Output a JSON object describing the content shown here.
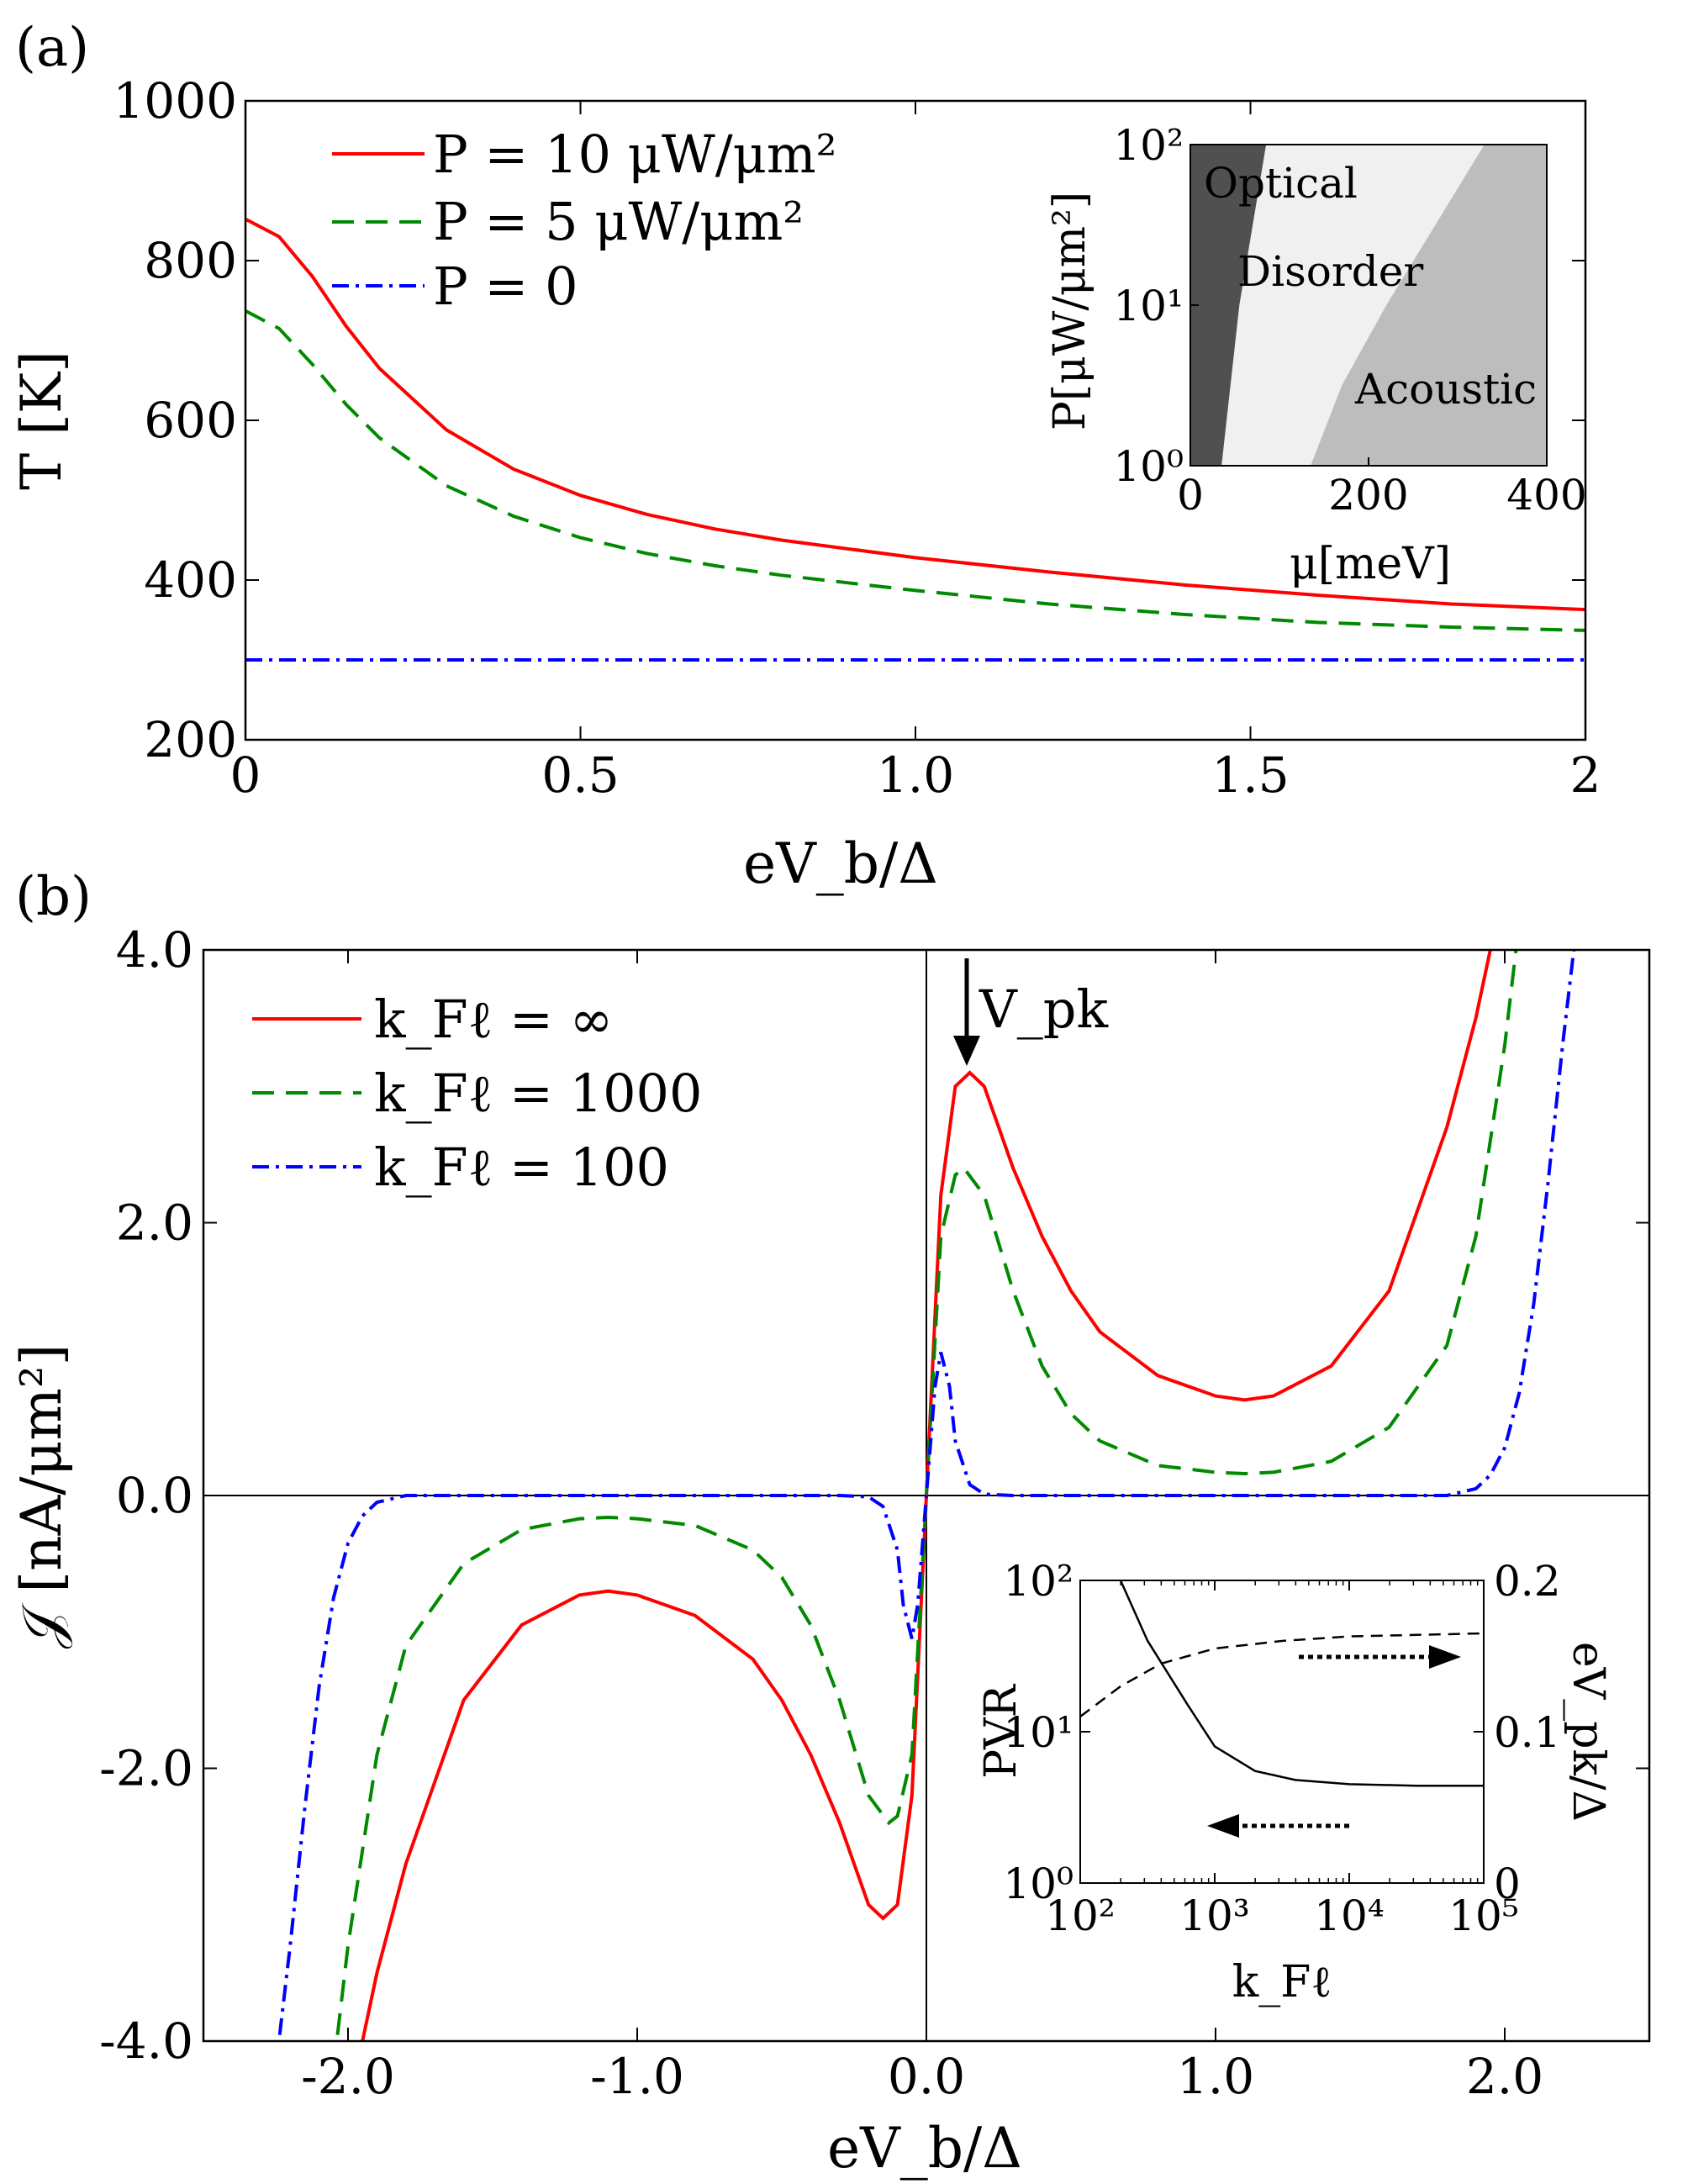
{
  "panel_labels": [
    "(a)",
    "(b)"
  ],
  "colors": {
    "red": "#ff0000",
    "green": "#008a00",
    "blue": "#0000ff",
    "black": "#000000",
    "optical": "#505050",
    "disorder": "#f0f0f0",
    "acoustic": "#bdbdbd"
  },
  "chart_data": [
    {
      "id": "panel-a",
      "type": "line",
      "title": "(a)",
      "xlabel": "eV_b/Δ",
      "ylabel": "T [K]",
      "xlim": [
        0,
        2
      ],
      "ylim": [
        200,
        1000
      ],
      "xticks": [
        0,
        0.5,
        1.0,
        1.5,
        2
      ],
      "xticklabels": [
        "0",
        "0.5",
        "1.0",
        "1.5",
        "2"
      ],
      "yticks": [
        200,
        400,
        600,
        800,
        1000
      ],
      "yticklabels": [
        "200",
        "400",
        "600",
        "800",
        "1000"
      ],
      "legend": [
        "P = 10 μW/μm²",
        "P = 5 μW/μm²",
        "P = 0"
      ],
      "series": [
        {
          "name": "P = 10 μW/μm²",
          "color": "red",
          "style": "solid",
          "x": [
            0,
            0.05,
            0.1,
            0.15,
            0.2,
            0.3,
            0.4,
            0.5,
            0.6,
            0.7,
            0.8,
            1.0,
            1.2,
            1.4,
            1.6,
            1.8,
            2.0
          ],
          "y": [
            852,
            830,
            780,
            718,
            665,
            588,
            539,
            506,
            482,
            464,
            450,
            428,
            410,
            394,
            381,
            370,
            363
          ]
        },
        {
          "name": "P = 5 μW/μm²",
          "color": "green",
          "style": "dashed",
          "x": [
            0,
            0.05,
            0.1,
            0.15,
            0.2,
            0.3,
            0.4,
            0.5,
            0.6,
            0.7,
            0.8,
            1.0,
            1.2,
            1.4,
            1.6,
            1.8,
            2.0
          ],
          "y": [
            737,
            715,
            670,
            620,
            578,
            518,
            480,
            453,
            433,
            418,
            406,
            387,
            370,
            357,
            347,
            341,
            337
          ]
        },
        {
          "name": "P = 0",
          "color": "blue",
          "style": "dashdot",
          "x": [
            0,
            2
          ],
          "y": [
            300,
            300
          ]
        }
      ]
    },
    {
      "id": "inset-a",
      "type": "heatmap",
      "xlabel": "μ[meV]",
      "ylabel": "P[μW/μm²]",
      "xlim": [
        0,
        400
      ],
      "ylim_log10": [
        0,
        2
      ],
      "xticks": [
        0,
        200,
        400
      ],
      "xticklabels": [
        "0",
        "200",
        "400"
      ],
      "yticks_log10": [
        0,
        1,
        2
      ],
      "yticklabels": [
        "10⁰",
        "10¹",
        "10²"
      ],
      "regions": [
        "Optical",
        "Disorder",
        "Acoustic"
      ],
      "boundaries": [
        {
          "name": "optical-disorder",
          "logP": [
            0,
            0.5,
            1,
            1.5,
            2
          ],
          "mu": [
            35,
            45,
            55,
            70,
            85
          ]
        },
        {
          "name": "disorder-acoustic",
          "logP": [
            0,
            0.5,
            1,
            1.5,
            2
          ],
          "mu": [
            135,
            170,
            220,
            275,
            330
          ]
        }
      ]
    },
    {
      "id": "panel-b",
      "type": "line",
      "title": "(b)",
      "xlabel": "eV_b/Δ",
      "ylabel": "𝒥 [nA/μm²]",
      "xlim": [
        -2.5,
        2.5
      ],
      "ylim": [
        -4,
        4
      ],
      "xticks": [
        -2,
        -1,
        0,
        1,
        2
      ],
      "xticklabels": [
        "-2.0",
        "-1.0",
        "0.0",
        "1.0",
        "2.0"
      ],
      "yticks": [
        -4,
        -2,
        0,
        2,
        4
      ],
      "yticklabels": [
        "-4.0",
        "-2.0",
        "0.0",
        "2.0",
        "4.0"
      ],
      "legend": [
        "k_Fℓ = ∞",
        "k_Fℓ = 1000",
        "k_Fℓ = 100"
      ],
      "annotation": "V_pk",
      "series": [
        {
          "name": "k_Fℓ = ∞",
          "color": "red",
          "style": "solid",
          "x": [
            0,
            0.05,
            0.1,
            0.15,
            0.2,
            0.3,
            0.4,
            0.5,
            0.6,
            0.8,
            1.0,
            1.1,
            1.2,
            1.4,
            1.6,
            1.8,
            1.9,
            1.95,
            2.0
          ],
          "y": [
            0,
            2.2,
            3.0,
            3.1,
            3.0,
            2.4,
            1.9,
            1.5,
            1.2,
            0.88,
            0.73,
            0.7,
            0.73,
            0.95,
            1.5,
            2.7,
            3.5,
            4.0,
            4.5
          ]
        },
        {
          "name": "k_Fℓ = 1000",
          "color": "green",
          "style": "dashed",
          "x": [
            0,
            0.05,
            0.1,
            0.13,
            0.2,
            0.3,
            0.4,
            0.5,
            0.6,
            0.8,
            1.0,
            1.1,
            1.2,
            1.4,
            1.6,
            1.8,
            1.9,
            2.0,
            2.05
          ],
          "y": [
            0,
            1.9,
            2.35,
            2.4,
            2.2,
            1.5,
            0.95,
            0.6,
            0.4,
            0.22,
            0.17,
            0.16,
            0.17,
            0.25,
            0.5,
            1.1,
            1.9,
            3.3,
            4.2
          ]
        },
        {
          "name": "k_Fℓ = 100",
          "color": "blue",
          "style": "dashdot",
          "x": [
            0,
            0.03,
            0.05,
            0.08,
            0.1,
            0.15,
            0.2,
            0.3,
            1.8,
            1.9,
            1.95,
            2.0,
            2.05,
            2.1,
            2.15,
            2.2,
            2.25
          ],
          "y": [
            0,
            0.8,
            1.05,
            0.8,
            0.4,
            0.08,
            0.01,
            0,
            0,
            0.05,
            0.15,
            0.35,
            0.75,
            1.4,
            2.3,
            3.3,
            4.2
          ]
        }
      ]
    },
    {
      "id": "inset-b",
      "type": "line",
      "xlabel": "k_Fℓ",
      "ylabel_left": "PVR",
      "ylabel_right": "eV_pk/Δ",
      "xlim_log10": [
        2,
        5
      ],
      "xticklabels": [
        "10²",
        "10³",
        "10⁴",
        "10⁵"
      ],
      "ylim_left_log10": [
        0,
        2
      ],
      "yticklabels_left": [
        "10⁰",
        "10¹",
        "10²"
      ],
      "ylim_right": [
        0,
        0.2
      ],
      "yticklabels_right": [
        "0",
        "0.1",
        "0.2"
      ],
      "series": [
        {
          "name": "PVR",
          "axis": "left",
          "style": "solid",
          "log10_x": [
            2.3,
            2.5,
            2.8,
            3.0,
            3.3,
            3.6,
            4.0,
            4.5,
            5.0
          ],
          "pvr": [
            100,
            40,
            15,
            8,
            5.5,
            4.8,
            4.5,
            4.4,
            4.4
          ]
        },
        {
          "name": "eV_pk/Δ",
          "axis": "right",
          "style": "dashed",
          "log10_x": [
            2.0,
            2.3,
            2.6,
            3.0,
            3.5,
            4.0,
            4.5,
            5.0
          ],
          "value": [
            0.11,
            0.13,
            0.145,
            0.155,
            0.16,
            0.163,
            0.164,
            0.165
          ]
        }
      ]
    }
  ]
}
